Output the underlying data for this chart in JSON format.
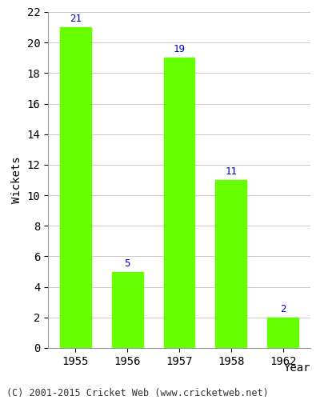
{
  "categories": [
    "1955",
    "1956",
    "1957",
    "1958",
    "1962"
  ],
  "values": [
    21,
    5,
    19,
    11,
    2
  ],
  "bar_color": "#66ff00",
  "label_color": "#0000cc",
  "title": "",
  "xlabel": "Year",
  "ylabel": "Wickets",
  "ylim": [
    0,
    22
  ],
  "yticks": [
    0,
    2,
    4,
    6,
    8,
    10,
    12,
    14,
    16,
    18,
    20,
    22
  ],
  "grid_color": "#cccccc",
  "bg_color": "#ffffff",
  "footer": "(C) 2001-2015 Cricket Web (www.cricketweb.net)",
  "label_fontsize": 9,
  "axis_fontsize": 10,
  "footer_fontsize": 8.5
}
